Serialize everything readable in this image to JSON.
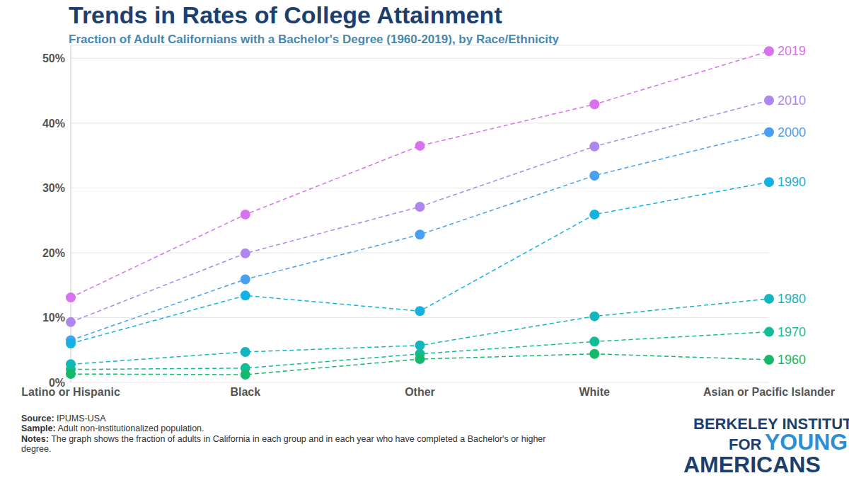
{
  "chart_data": {
    "type": "line",
    "title": "Trends in Rates of College Attainment",
    "subtitle": "Fraction of Adult Californians with a Bachelor's Degree (1960-2019), by Race/Ethnicity",
    "categories": [
      "Latino or Hispanic",
      "Black",
      "Other",
      "White",
      "Asian or Pacific Islander"
    ],
    "series": [
      {
        "name": "2019",
        "color": "#d872ef",
        "values": [
          13.1,
          25.9,
          36.5,
          42.9,
          51.1
        ]
      },
      {
        "name": "2010",
        "color": "#ad86ef",
        "values": [
          9.3,
          19.9,
          27.1,
          36.4,
          43.5
        ]
      },
      {
        "name": "2000",
        "color": "#47a0f0",
        "values": [
          6.5,
          15.9,
          22.8,
          31.9,
          38.6
        ]
      },
      {
        "name": "1990",
        "color": "#14b2e2",
        "values": [
          6.0,
          13.4,
          11.0,
          25.9,
          30.9
        ]
      },
      {
        "name": "1980",
        "color": "#13b6bf",
        "values": [
          2.8,
          4.7,
          5.7,
          10.2,
          12.9
        ]
      },
      {
        "name": "1970",
        "color": "#12bd95",
        "values": [
          2.0,
          2.2,
          4.4,
          6.3,
          7.8
        ]
      },
      {
        "name": "1960",
        "color": "#16b86a",
        "values": [
          1.3,
          1.2,
          3.6,
          4.4,
          3.5
        ]
      }
    ],
    "ylim": [
      0,
      52
    ],
    "yticks": [
      {
        "value": 0,
        "label": "0%"
      },
      {
        "value": 10,
        "label": "10%"
      },
      {
        "value": 20,
        "label": "20%"
      },
      {
        "value": 30,
        "label": "30%"
      },
      {
        "value": 40,
        "label": "40%"
      },
      {
        "value": 50,
        "label": "50%"
      }
    ],
    "grid": true,
    "marker": "circle",
    "line_style": "dashed",
    "footnotes": [
      {
        "label": "Source:",
        "text": "IPUMS-USA"
      },
      {
        "label": "Sample:",
        "text": "Adult non-institutionalized population."
      },
      {
        "label": "Notes:",
        "text": "The graph shows the fraction of adults in California in each group and in each year who have completed a Bachelor's or higher degree."
      }
    ],
    "logo": [
      "BERKELEY INSTITUTE",
      "FOR",
      "YOUNG",
      "AMERICANS"
    ]
  }
}
